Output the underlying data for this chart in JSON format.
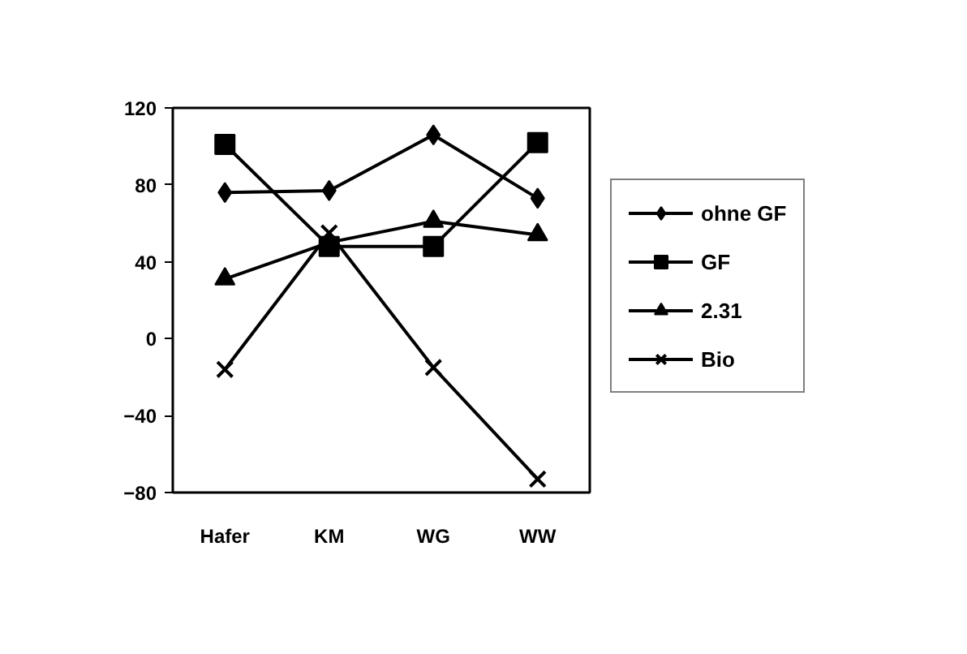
{
  "chart_data": {
    "type": "line",
    "categories": [
      "Hafer",
      "KM",
      "WG",
      "WW"
    ],
    "ylim": [
      -80,
      120
    ],
    "yticks": [
      -80,
      -40,
      0,
      40,
      80,
      120
    ],
    "grid": false,
    "legend": "right",
    "series": [
      {
        "name": "ohne GF",
        "color": "#000000",
        "marker": "diamond",
        "values": [
          76,
          77,
          106,
          73
        ]
      },
      {
        "name": "GF",
        "color": "#000000",
        "marker": "square",
        "values": [
          101,
          48,
          48,
          102
        ]
      },
      {
        "name": "2.31",
        "color": "#000000",
        "marker": "triangle",
        "values": [
          31,
          50,
          61,
          54
        ]
      },
      {
        "name": "Bio",
        "color": "#000000",
        "marker": "cross",
        "values": [
          -16,
          55,
          -15,
          -73
        ]
      }
    ]
  }
}
